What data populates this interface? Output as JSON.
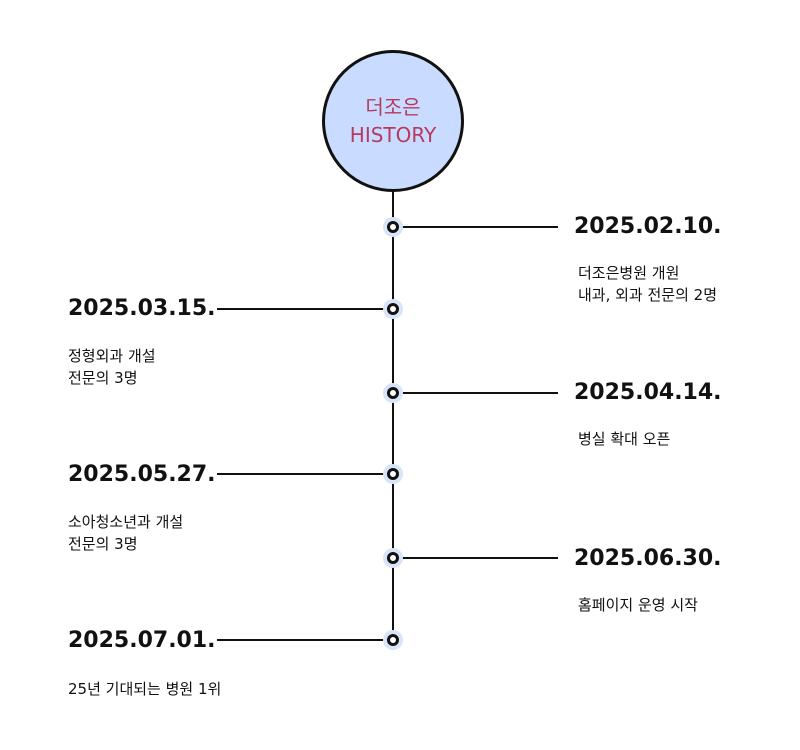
{
  "hero": {
    "line1": "더조은",
    "line2": "HISTORY"
  },
  "events": [
    {
      "date": "2025.02.10.",
      "lines": [
        "더조은병원 개원",
        "내과, 외과 전문의 2명"
      ]
    },
    {
      "date": "2025.03.15.",
      "lines": [
        "정형외과 개설",
        "전문의 3명"
      ]
    },
    {
      "date": "2025.04.14.",
      "lines": [
        "병실 확대 오픈"
      ]
    },
    {
      "date": "2025.05.27.",
      "lines": [
        "소아청소년과 개설",
        "전문의 3명"
      ]
    },
    {
      "date": "2025.06.30.",
      "lines": [
        "홈페이지 운영 시작"
      ]
    },
    {
      "date": "2025.07.01.",
      "lines": [
        "25년 기대되는 병원 1위"
      ]
    }
  ],
  "colors": {
    "hero_fill": "#c9dcff",
    "hero_text": "#b53a5f",
    "line": "#111111",
    "node_halo": "#d8e4f7"
  }
}
